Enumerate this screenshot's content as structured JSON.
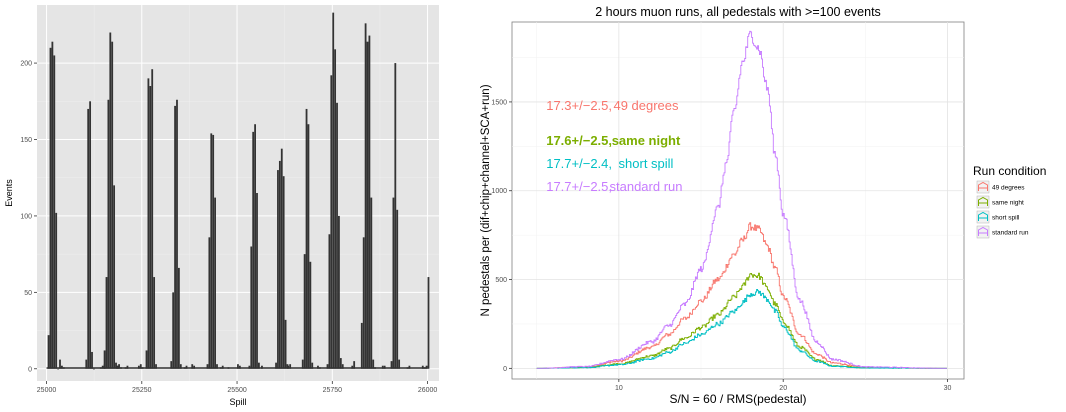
{
  "colors": {
    "panel_bg": "#e5e5e5",
    "grid_major": "#ffffff",
    "grid_minor": "#f0f0f0",
    "bar_fill": "#333333",
    "49_degrees": "#f8766d",
    "same_night": "#7cae00",
    "short_spill": "#00bfc4",
    "standard_run": "#c77cff"
  },
  "chart_data": [
    {
      "type": "bar",
      "title": "",
      "xlabel": "Spill",
      "ylabel": "Events",
      "xlim": [
        24975,
        26030
      ],
      "ylim": [
        -8,
        238
      ],
      "grid": true,
      "x_ticks": [
        25000,
        25250,
        25500,
        25750,
        26000
      ],
      "x_tick_labels": [
        "25000",
        "25250",
        "25500",
        "25750",
        "26000"
      ],
      "y_ticks": [
        0,
        50,
        100,
        150,
        200
      ],
      "y_tick_labels": [
        "0",
        "50",
        "100",
        "150",
        "200"
      ],
      "bin_width": 5,
      "groups": [
        {
          "start": 25003,
          "values": [
            22,
            210,
            214,
            205,
            102,
            0,
            6,
            2,
            1
          ]
        },
        {
          "start": 25102,
          "values": [
            6,
            170,
            175,
            11,
            0
          ]
        },
        {
          "start": 25140,
          "values": [
            1,
            2,
            3
          ]
        },
        {
          "start": 25150,
          "values": [
            12,
            60,
            176,
            220,
            214,
            120,
            4,
            2
          ]
        },
        {
          "start": 25183,
          "values": [
            2,
            3,
            1
          ]
        },
        {
          "start": 25205,
          "values": [
            1,
            2
          ]
        },
        {
          "start": 25240,
          "values": [
            2,
            3,
            1
          ]
        },
        {
          "start": 25260,
          "values": [
            12,
            190,
            185,
            196,
            60,
            3
          ]
        },
        {
          "start": 25325,
          "values": [
            5,
            50,
            172,
            176,
            66,
            3
          ]
        },
        {
          "start": 25360,
          "values": [
            1,
            2
          ]
        },
        {
          "start": 25380,
          "values": [
            3,
            2
          ]
        },
        {
          "start": 25420,
          "values": [
            3,
            86,
            154,
            153,
            112,
            3
          ]
        },
        {
          "start": 25455,
          "values": [
            1,
            2
          ]
        },
        {
          "start": 25475,
          "values": [
            1
          ]
        },
        {
          "start": 25500,
          "values": [
            3,
            2
          ]
        },
        {
          "start": 25530,
          "values": [
            2,
            80,
            155,
            160,
            115,
            4
          ]
        },
        {
          "start": 25563,
          "values": [
            2
          ]
        },
        {
          "start": 25600,
          "values": [
            4,
            130,
            136,
            144,
            126,
            32,
            3
          ]
        },
        {
          "start": 25632,
          "values": [
            2,
            3
          ]
        },
        {
          "start": 25670,
          "values": [
            6,
            75,
            170,
            160,
            70,
            4
          ]
        },
        {
          "start": 25710,
          "values": [
            2,
            1
          ]
        },
        {
          "start": 25735,
          "values": [
            3,
            88,
            192,
            233,
            209,
            174,
            100,
            7
          ]
        },
        {
          "start": 25775,
          "values": [
            3
          ]
        },
        {
          "start": 25800,
          "values": [
            2,
            5
          ]
        },
        {
          "start": 25825,
          "values": [
            30,
            86,
            226,
            214,
            218,
            112,
            6,
            1
          ]
        },
        {
          "start": 25880,
          "values": [
            2,
            2
          ]
        },
        {
          "start": 25903,
          "values": [
            5,
            112,
            200,
            104,
            6
          ]
        },
        {
          "start": 25945,
          "values": [
            1,
            2
          ]
        },
        {
          "start": 25985,
          "values": [
            2,
            1,
            2
          ]
        },
        {
          "start": 26000,
          "values": [
            60
          ]
        }
      ]
    },
    {
      "type": "line",
      "title": "2 hours muon runs, all pedestals with >=100 events",
      "xlabel": "S/N = 60 / RMS(pedestal)",
      "ylabel": "N pedestals per (dif+chip+channel+SCA+run)",
      "xlim": [
        3.5,
        31
      ],
      "ylim": [
        -60,
        1950
      ],
      "grid": true,
      "x_ticks": [
        10,
        20,
        30
      ],
      "x_tick_labels": [
        "10",
        "20",
        "30"
      ],
      "y_ticks": [
        0,
        500,
        1000,
        1500
      ],
      "y_tick_labels": [
        "0",
        "500",
        "1000",
        "1500"
      ],
      "legend": {
        "title": "Run condition",
        "position": "right",
        "entries": [
          "49 degrees",
          "same night",
          "short spill",
          "standard run"
        ]
      },
      "annotations": [
        {
          "mean": "17.3+/−2.5,",
          "label": "49 degrees",
          "series": "49 degrees"
        },
        {
          "mean": "17.6+/−2.5,",
          "label": "same night",
          "series": "same night"
        },
        {
          "mean": "17.7+/−2.4,",
          "label": "short spill",
          "series": "short spill"
        },
        {
          "mean": "17.7+/−2.5,",
          "label": "standard run",
          "series": "standard run"
        }
      ],
      "series": [
        {
          "name": "49 degrees",
          "color": "#f8766d",
          "x": [
            5,
            8,
            10,
            12,
            13,
            14,
            15,
            16,
            17,
            17.5,
            18,
            18.5,
            19,
            19.5,
            20,
            21,
            22,
            23,
            25,
            30
          ],
          "y": [
            0,
            8,
            40,
            120,
            190,
            280,
            380,
            500,
            640,
            720,
            800,
            780,
            690,
            560,
            400,
            190,
            80,
            30,
            5,
            0
          ]
        },
        {
          "name": "same night",
          "color": "#7cae00",
          "x": [
            5,
            8,
            10,
            12,
            13,
            14,
            15,
            16,
            17,
            17.5,
            18,
            18.5,
            19,
            19.5,
            20,
            21,
            22,
            23,
            25,
            30
          ],
          "y": [
            0,
            5,
            25,
            70,
            110,
            170,
            230,
            300,
            400,
            460,
            530,
            520,
            450,
            360,
            260,
            120,
            50,
            15,
            3,
            0
          ]
        },
        {
          "name": "short spill",
          "color": "#00bfc4",
          "x": [
            5,
            8,
            10,
            12,
            13,
            14,
            15,
            16,
            17,
            17.5,
            18,
            18.5,
            19,
            19.5,
            20,
            21,
            22,
            23,
            25,
            30
          ],
          "y": [
            0,
            4,
            20,
            55,
            90,
            140,
            190,
            250,
            320,
            370,
            420,
            430,
            390,
            320,
            230,
            100,
            40,
            12,
            2,
            0
          ]
        },
        {
          "name": "standard run",
          "color": "#c77cff",
          "x": [
            5,
            8,
            10,
            12,
            13,
            14,
            15,
            16,
            16.5,
            17,
            17.5,
            18,
            18.5,
            19,
            19.5,
            20,
            21,
            22,
            23,
            25,
            30
          ],
          "y": [
            0,
            10,
            50,
            150,
            240,
            360,
            560,
            900,
            1150,
            1450,
            1720,
            1880,
            1800,
            1580,
            1200,
            860,
            380,
            150,
            50,
            8,
            0
          ]
        }
      ]
    }
  ]
}
